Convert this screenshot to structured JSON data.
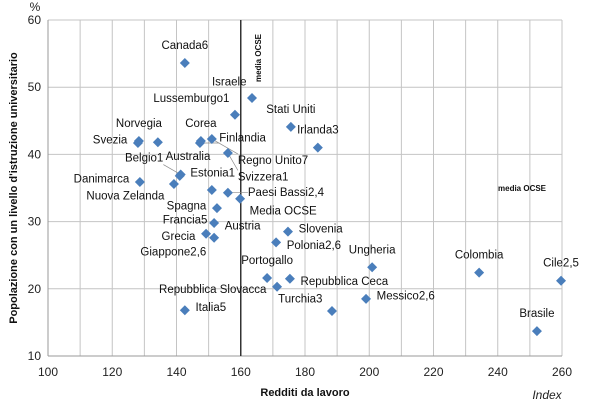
{
  "chart_data": {
    "type": "scatter",
    "title": "",
    "xlabel": "Redditi da lavoro",
    "xunit": "Index",
    "ylabel": "Popolazione con un livello d'istruzione universitario",
    "yunit": "%",
    "xlim": [
      100,
      260
    ],
    "ylim": [
      10,
      60
    ],
    "xticks": [
      100,
      120,
      140,
      160,
      180,
      200,
      220,
      240,
      260
    ],
    "yticks": [
      10,
      20,
      30,
      40,
      50,
      60
    ],
    "grid": true,
    "marker_color": "#4a7ebb",
    "reference_lines": [
      {
        "axis": "x",
        "value": 160,
        "label": "media OCSE"
      }
    ],
    "reference_label_right": "media OCSE",
    "points": [
      {
        "label": "Canada6",
        "x": 142.6,
        "y": 53.6
      },
      {
        "label": "Israele",
        "x": 163.5,
        "y": 48.4
      },
      {
        "label": "Lussemburgo1",
        "x": 158.2,
        "y": 45.9
      },
      {
        "label": "Corea",
        "x": 147.6,
        "y": 42.0
      },
      {
        "label": "Stati Uniti",
        "x": 175.6,
        "y": 44.1
      },
      {
        "label": "Irlanda3",
        "x": 184.0,
        "y": 41.0
      },
      {
        "label": "Norvegia",
        "x": 128.3,
        "y": 42.0
      },
      {
        "label": "Svezia",
        "x": 128.0,
        "y": 41.7
      },
      {
        "label": "Australia",
        "x": 134.2,
        "y": 41.8
      },
      {
        "label": "Finlandia",
        "x": 147.3,
        "y": 41.7
      },
      {
        "label": "Regno Unito7",
        "x": 151.0,
        "y": 42.3
      },
      {
        "label": "Svizzera1",
        "x": 156.0,
        "y": 40.2
      },
      {
        "label": "Estonia1",
        "x": 141.0,
        "y": 36.8
      },
      {
        "label": "Belgio1",
        "x": 141.3,
        "y": 37.0
      },
      {
        "label": "Danimarca",
        "x": 128.6,
        "y": 35.9
      },
      {
        "label": "Nuova Zelanda",
        "x": 139.2,
        "y": 35.6
      },
      {
        "label": "Spagna",
        "x": 151.0,
        "y": 34.7
      },
      {
        "label": "Paesi Bassi2,4",
        "x": 156.0,
        "y": 34.3
      },
      {
        "label": "Media OCSE",
        "x": 159.8,
        "y": 33.4
      },
      {
        "label": "Francia5",
        "x": 152.6,
        "y": 32.0
      },
      {
        "label": "Austria",
        "x": 151.7,
        "y": 29.8
      },
      {
        "label": "Grecia",
        "x": 149.2,
        "y": 28.2
      },
      {
        "label": "Giappone2,6",
        "x": 151.7,
        "y": 27.6
      },
      {
        "label": "Slovenia",
        "x": 174.7,
        "y": 28.5
      },
      {
        "label": "Polonia2,6",
        "x": 171.0,
        "y": 26.9
      },
      {
        "label": "Portogallo",
        "x": 168.2,
        "y": 21.6
      },
      {
        "label": "Repubblica Ceca",
        "x": 175.3,
        "y": 21.5
      },
      {
        "label": "Repubblica Slovacca",
        "x": 171.3,
        "y": 20.3
      },
      {
        "label": "Ungheria",
        "x": 200.9,
        "y": 23.2
      },
      {
        "label": "Messico2,6",
        "x": 199.0,
        "y": 18.5
      },
      {
        "label": "Turchia3",
        "x": 188.4,
        "y": 16.7
      },
      {
        "label": "Colombia",
        "x": 234.2,
        "y": 22.4
      },
      {
        "label": "Cile2,5",
        "x": 259.7,
        "y": 21.2
      },
      {
        "label": "Brasile",
        "x": 252.2,
        "y": 13.7
      },
      {
        "label": "Italia5",
        "x": 142.6,
        "y": 16.8
      }
    ]
  }
}
